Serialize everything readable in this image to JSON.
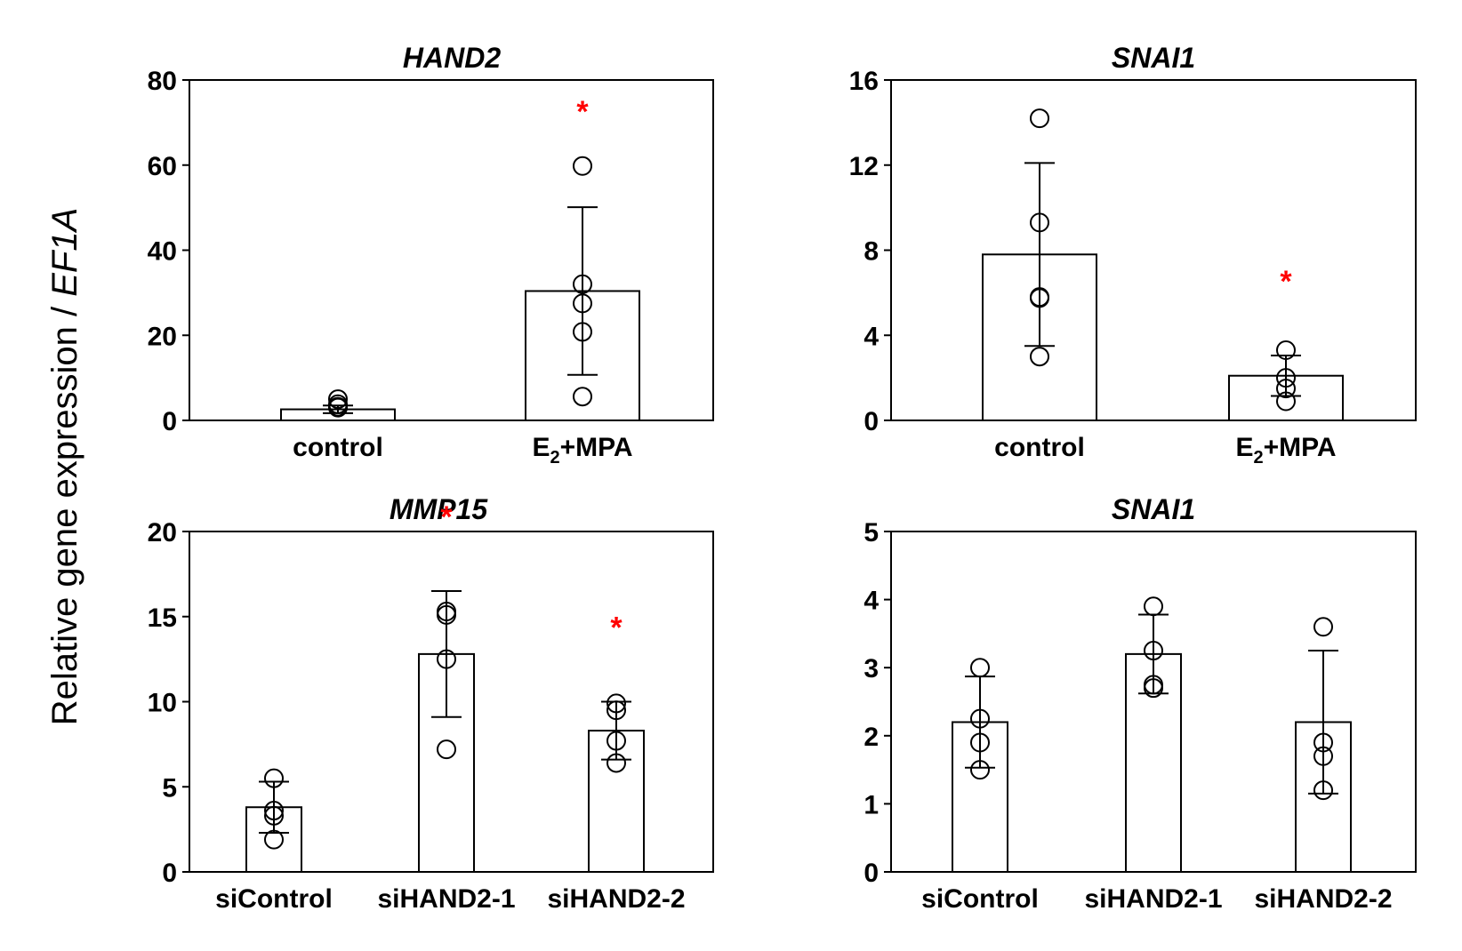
{
  "figure": {
    "ylabel_prefix": "Relative gene expression / ",
    "ylabel_gene": "EF1A"
  },
  "chart_data": [
    {
      "type": "bar",
      "panel": "top-left",
      "title": "HAND2",
      "categories": [
        "control",
        "E2+MPA"
      ],
      "category_labels": [
        {
          "main": "control"
        },
        {
          "main": "E",
          "sub": "2",
          "rest": "+MPA"
        }
      ],
      "values": [
        2.6,
        30.4
      ],
      "errors": [
        0.9,
        19.7
      ],
      "points": [
        [
          3.2,
          5.0,
          3.0,
          3.8
        ],
        [
          59.8,
          32.0,
          27.5,
          20.8,
          5.6
        ]
      ],
      "significant": [
        false,
        true
      ],
      "sig_marker": "*",
      "ylim": [
        0,
        80
      ],
      "yticks": [
        "0",
        "20",
        "40",
        "60",
        "80"
      ]
    },
    {
      "type": "bar",
      "panel": "top-right",
      "title": "SNAI1",
      "categories": [
        "control",
        "E2+MPA"
      ],
      "category_labels": [
        {
          "main": "control"
        },
        {
          "main": "E",
          "sub": "2",
          "rest": "+MPA"
        }
      ],
      "values": [
        7.8,
        2.1
      ],
      "errors": [
        4.3,
        0.95
      ],
      "points": [
        [
          14.2,
          9.3,
          5.8,
          5.75,
          3.0
        ],
        [
          3.3,
          2.0,
          1.5,
          0.9
        ]
      ],
      "significant": [
        false,
        true
      ],
      "sig_marker": "*",
      "ylim": [
        0,
        16
      ],
      "yticks": [
        "0",
        "4",
        "8",
        "12",
        "16"
      ]
    },
    {
      "type": "bar",
      "panel": "bottom-left",
      "title": "MMP15",
      "categories": [
        "siControl",
        "siHAND2-1",
        "siHAND2-2"
      ],
      "values": [
        3.8,
        12.8,
        8.3
      ],
      "errors": [
        1.5,
        3.7,
        1.7
      ],
      "points": [
        [
          5.5,
          3.6,
          3.3,
          1.9
        ],
        [
          15.3,
          15.1,
          12.5,
          7.2
        ],
        [
          9.9,
          9.5,
          7.7,
          6.4
        ]
      ],
      "significant": [
        false,
        true,
        true
      ],
      "sig_marker": "*",
      "ylim": [
        0,
        20
      ],
      "yticks": [
        "0",
        "5",
        "10",
        "15",
        "20"
      ]
    },
    {
      "type": "bar",
      "panel": "bottom-right",
      "title": "SNAI1",
      "categories": [
        "siControl",
        "siHAND2-1",
        "siHAND2-2"
      ],
      "values": [
        2.2,
        3.2,
        2.2
      ],
      "errors": [
        0.67,
        0.58,
        1.05
      ],
      "points": [
        [
          3.0,
          2.25,
          1.9,
          1.5
        ],
        [
          3.9,
          3.25,
          2.75,
          2.7
        ],
        [
          3.6,
          1.9,
          1.7,
          1.2
        ]
      ],
      "significant": [
        false,
        false,
        false
      ],
      "sig_marker": "*",
      "ylim": [
        0,
        5
      ],
      "yticks": [
        "0",
        "1",
        "2",
        "3",
        "4",
        "5"
      ]
    }
  ]
}
